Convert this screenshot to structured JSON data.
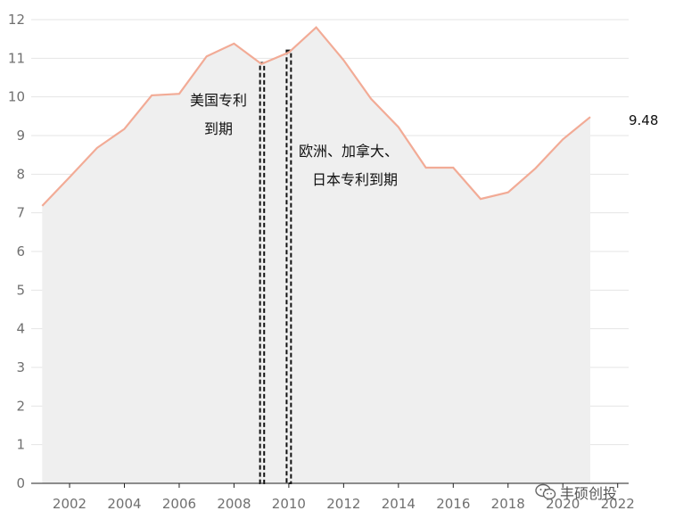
{
  "chart_data": {
    "type": "area",
    "x": [
      2001,
      2002,
      2003,
      2004,
      2005,
      2006,
      2007,
      2008,
      2009,
      2010,
      2011,
      2012,
      2013,
      2014,
      2015,
      2016,
      2017,
      2018,
      2019,
      2020,
      2021
    ],
    "values": [
      7.18,
      7.92,
      8.68,
      9.17,
      10.04,
      10.08,
      11.05,
      11.38,
      10.85,
      11.15,
      11.8,
      10.95,
      9.95,
      9.22,
      8.17,
      8.17,
      7.36,
      7.53,
      8.15,
      8.9,
      9.48
    ],
    "xticks": [
      2002,
      2004,
      2006,
      2008,
      2010,
      2012,
      2014,
      2016,
      2018,
      2020,
      2022
    ],
    "yticks": [
      0,
      1,
      2,
      3,
      4,
      5,
      6,
      7,
      8,
      9,
      10,
      11,
      12
    ],
    "xlim": [
      2000.6,
      2022.4
    ],
    "ylim": [
      0,
      12
    ],
    "grid": true,
    "line_color": "#f2ab96",
    "fill_color": "#efefef",
    "end_label": "9.48",
    "markers": [
      {
        "x_start": 2008.95,
        "x_end": 2009.1
      },
      {
        "x_start": 2009.92,
        "x_end": 2010.08
      }
    ],
    "annotations": [
      {
        "lines": [
          "美国专利",
          "到期"
        ]
      },
      {
        "lines": [
          "欧洲、加拿大、",
          "日本专利到期"
        ]
      }
    ]
  },
  "watermark": {
    "text": "丰硕创投",
    "icon": "wechat-icon"
  }
}
